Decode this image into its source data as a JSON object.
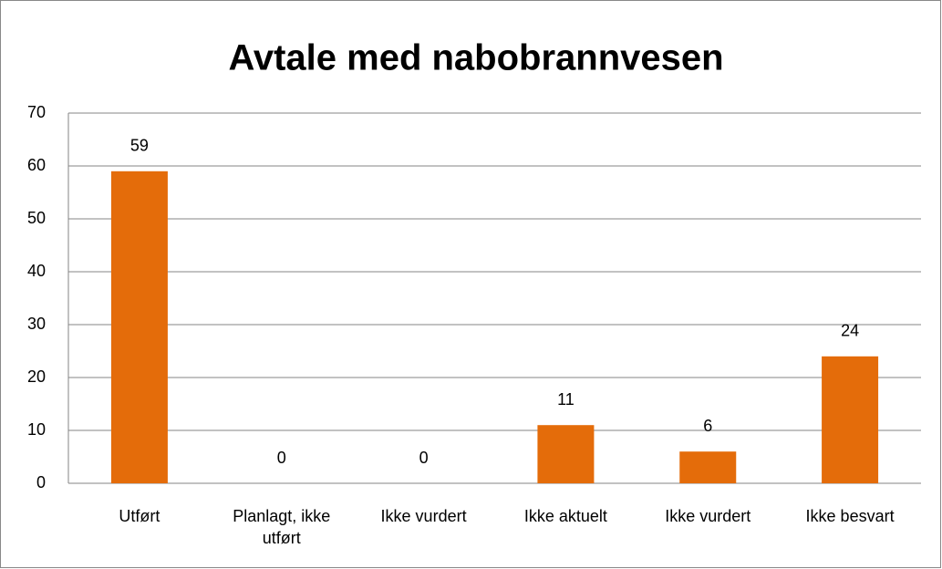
{
  "chart_data": {
    "type": "bar",
    "title": "Avtale med nabobrannvesen",
    "categories": [
      "Utført",
      "Planlagt, ikke utført",
      "Ikke vurdert",
      "Ikke aktuelt",
      "Ikke vurdert",
      "Ikke besvart"
    ],
    "values": [
      59,
      0,
      0,
      11,
      6,
      24
    ],
    "color": "#e46c0a",
    "ylim": [
      0,
      70
    ],
    "yticks": [
      0,
      10,
      20,
      30,
      40,
      50,
      60,
      70
    ],
    "grid": true
  }
}
